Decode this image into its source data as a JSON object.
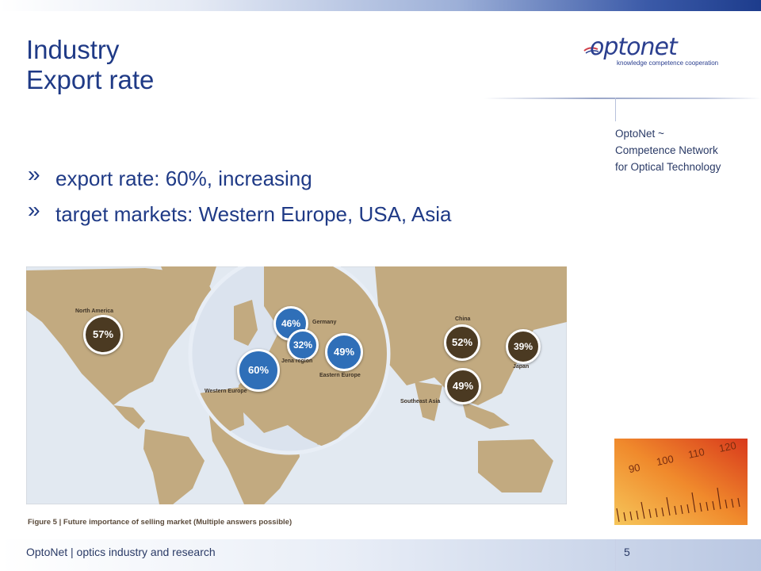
{
  "slide": {
    "title_line1": "Industry",
    "title_line2": "Export rate",
    "bullets": [
      {
        "text": "export rate: 60%, increasing"
      },
      {
        "text": "target markets: Western Europe, USA, Asia"
      }
    ],
    "bullet_glyph": "»"
  },
  "logo": {
    "word_part1": "opto",
    "word_part2": "net",
    "tagline": "knowledge competence cooperation"
  },
  "sidebar": {
    "line1": "OptoNet ~",
    "line2": "Competence Network",
    "line3": "for Optical Technology"
  },
  "map": {
    "regions": [
      {
        "label": "North America",
        "value": "57%"
      },
      {
        "label": "Germany",
        "value": "46%"
      },
      {
        "label": "Jena region",
        "value": "32%"
      },
      {
        "label": "Eastern Europe",
        "value": "49%"
      },
      {
        "label": "Western Europe",
        "value": "60%"
      },
      {
        "label": "China",
        "value": "52%"
      },
      {
        "label": "Southeast Asia",
        "value": "49%"
      },
      {
        "label": "Japan",
        "value": "39%"
      }
    ],
    "caption": "Figure 5 | Future importance of selling market (Multiple answers possible)",
    "colors": {
      "land": "#c2aa80",
      "ocean": "#e2e9f1",
      "blue_bubble": "#2f6fb8",
      "dark_bubble": "#4b3a22"
    }
  },
  "ruler": {
    "ticks": [
      "90",
      "100",
      "110",
      "120"
    ]
  },
  "footer": {
    "text": "OptoNet | optics industry and research",
    "page": "5"
  }
}
